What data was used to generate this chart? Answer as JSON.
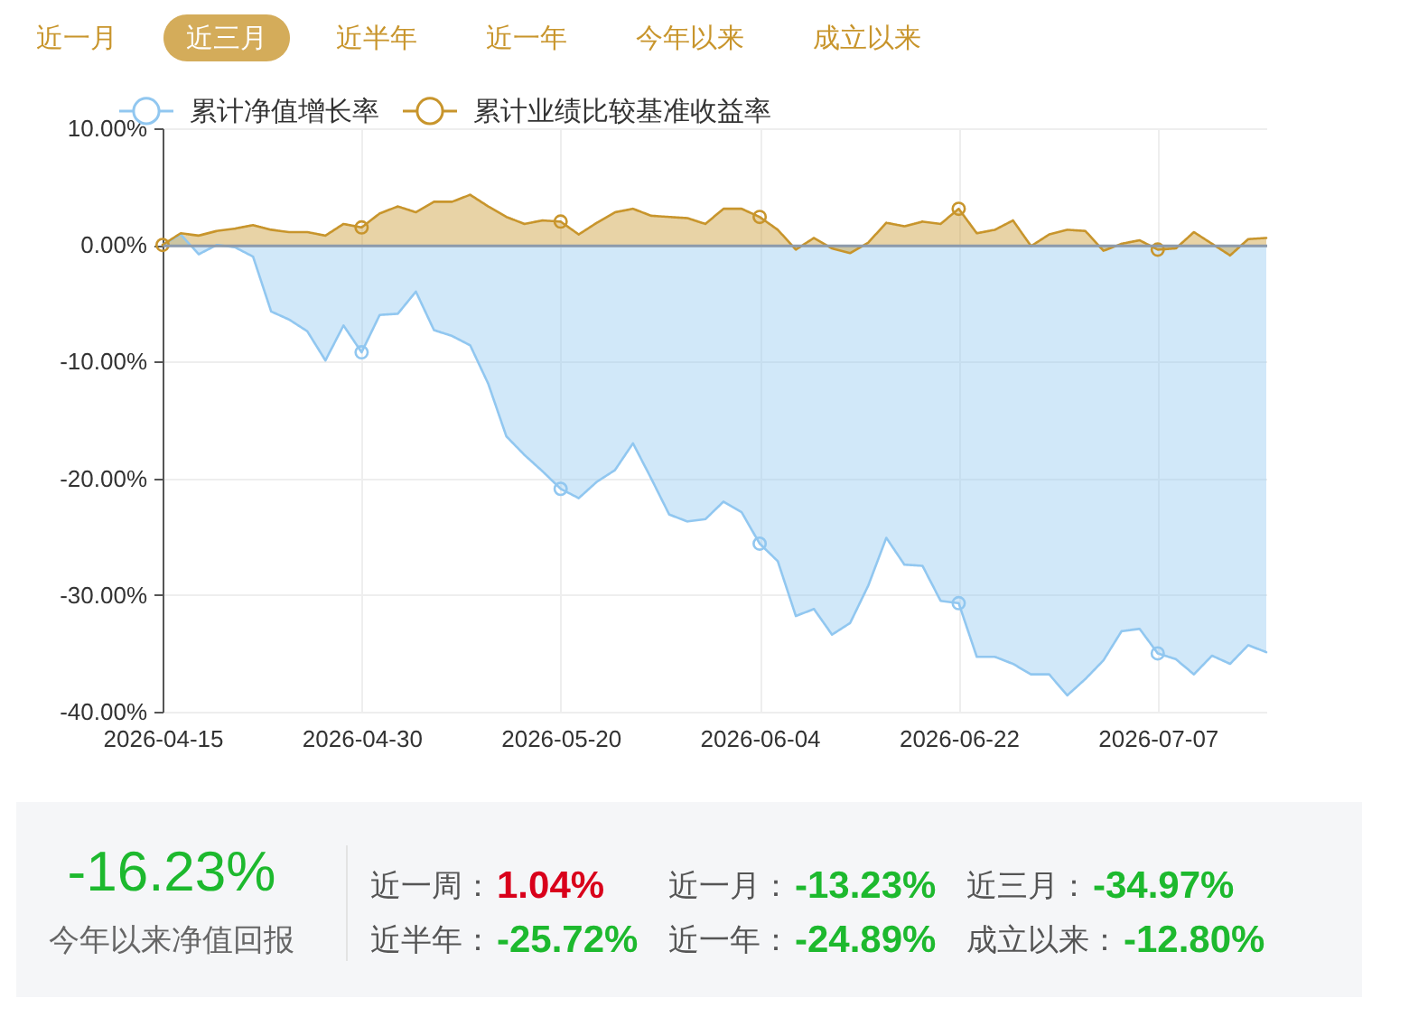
{
  "chart_data": [
    {
      "type": "other",
      "categories": [
        "近一月",
        "近三月",
        "近半年",
        "近一年",
        "今年以来",
        "成立以来"
      ],
      "colors": [
        null,
        "#d4ac5a",
        null,
        null,
        null,
        null
      ]
    },
    {
      "type": "area",
      "categories": [
        "2026-04-15",
        null,
        null,
        null,
        null,
        null,
        null,
        null,
        null,
        null,
        null,
        "2026-04-30",
        null,
        null,
        null,
        null,
        null,
        null,
        null,
        null,
        null,
        null,
        "2026-05-20",
        null,
        null,
        null,
        null,
        null,
        null,
        null,
        null,
        null,
        null,
        "2026-06-04",
        null,
        null,
        null,
        null,
        null,
        null,
        null,
        null,
        null,
        null,
        "2026-06-22",
        null,
        null,
        null,
        null,
        null,
        null,
        null,
        null,
        null,
        null,
        "2026-07-07",
        null,
        null,
        null,
        null,
        null,
        null
      ],
      "series": [
        {
          "name": "累计净值增长率",
          "color": "#91c7f0",
          "values": [
            0.0,
            0.9,
            -0.8,
            0.0,
            -0.2,
            -1.0,
            -5.7,
            -6.4,
            -7.4,
            -9.9,
            -6.9,
            -9.2,
            -6.0,
            -5.9,
            -4.0,
            -7.3,
            -7.8,
            -8.6,
            -11.9,
            -16.4,
            -18.0,
            -19.4,
            -20.9,
            -21.7,
            -20.3,
            -19.3,
            -17.0,
            -20.0,
            -23.1,
            -23.7,
            -23.5,
            -22.0,
            -22.9,
            -25.6,
            -27.1,
            -31.8,
            -31.2,
            -33.4,
            -32.4,
            -29.2,
            -25.1,
            -27.4,
            -27.5,
            -30.5,
            -30.7,
            -35.3,
            -35.3,
            -35.9,
            -36.8,
            -36.8,
            -38.6,
            -37.2,
            -35.6,
            -33.1,
            -32.9,
            -35.0,
            -35.5,
            -36.8,
            -35.2,
            -35.9,
            -34.3,
            -34.9
          ]
        },
        {
          "name": "累计业绩比较基准收益率",
          "color": "#c8952c",
          "values": [
            0.0,
            1.0,
            0.8,
            1.2,
            1.4,
            1.7,
            1.3,
            1.1,
            1.1,
            0.8,
            1.8,
            1.5,
            2.7,
            3.3,
            2.8,
            3.7,
            3.7,
            4.3,
            3.3,
            2.4,
            1.8,
            2.1,
            2.0,
            0.9,
            1.9,
            2.8,
            3.1,
            2.5,
            2.4,
            2.3,
            1.8,
            3.1,
            3.1,
            2.4,
            1.3,
            -0.4,
            0.6,
            -0.3,
            -0.7,
            0.2,
            1.9,
            1.6,
            2.0,
            1.8,
            3.1,
            1.0,
            1.3,
            2.1,
            -0.1,
            0.9,
            1.3,
            1.2,
            -0.5,
            0.1,
            0.4,
            -0.4,
            -0.3,
            1.1,
            0.1,
            -0.9,
            0.5,
            0.6
          ]
        },
        {
          "type": "scatter",
          "color": "#91c7f0",
          "marker": "circle",
          "values": [
            null,
            null,
            null,
            null,
            null,
            null,
            null,
            null,
            null,
            null,
            null,
            -9.2,
            null,
            null,
            null,
            null,
            null,
            null,
            null,
            null,
            null,
            null,
            -20.9,
            null,
            null,
            null,
            null,
            null,
            null,
            null,
            null,
            null,
            null,
            -25.6,
            null,
            null,
            null,
            null,
            null,
            null,
            null,
            null,
            null,
            null,
            -30.7,
            null,
            null,
            null,
            null,
            null,
            null,
            null,
            null,
            null,
            null,
            -35.0,
            null,
            null,
            null,
            null,
            null,
            null
          ]
        },
        {
          "type": "scatter",
          "color": "#c8952c",
          "marker": "circle",
          "values": [
            0.0,
            null,
            null,
            null,
            null,
            null,
            null,
            null,
            null,
            null,
            null,
            1.5,
            null,
            null,
            null,
            null,
            null,
            null,
            null,
            null,
            null,
            null,
            2.0,
            null,
            null,
            null,
            null,
            null,
            null,
            null,
            null,
            null,
            null,
            2.4,
            null,
            null,
            null,
            null,
            null,
            null,
            null,
            null,
            null,
            null,
            3.1,
            null,
            null,
            null,
            null,
            null,
            null,
            null,
            null,
            null,
            null,
            -0.4,
            null,
            null,
            null,
            null,
            null,
            null
          ]
        }
      ],
      "ylim": [
        -40,
        10
      ],
      "yticks": [
        {
          "value": 10,
          "label": "10.00%"
        },
        {
          "value": 0,
          "label": "0.00%"
        },
        {
          "value": -10,
          "label": "-10.00%"
        },
        {
          "value": -20,
          "label": "-20.00%"
        },
        {
          "value": -30,
          "label": "-30.00%"
        },
        {
          "value": -40,
          "label": "-40.00%"
        }
      ],
      "grid": true,
      "legend": "top left",
      "line_style": "solid"
    },
    {
      "type": "other",
      "title": "-16.23%",
      "subtitle": "今年以来净值回报",
      "categories": [
        "近一周",
        "近一月",
        "近三月",
        "近半年",
        "近一年",
        "成立以来"
      ],
      "values": [
        1.04,
        -13.23,
        -34.97,
        -25.72,
        -24.89,
        -12.8
      ],
      "value_labels": [
        "1.04%",
        "-13.23%",
        "-34.97%",
        "-25.72%",
        "-24.89%",
        "-12.80%"
      ],
      "annotations": [
        "："
      ]
    }
  ]
}
